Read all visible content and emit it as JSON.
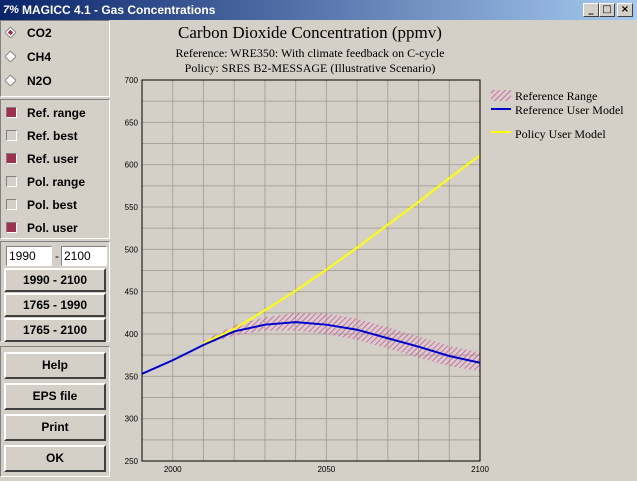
{
  "window": {
    "title": "MAGICC 4.1 - Gas Concentrations",
    "icon_glyph": "7%",
    "minimize_glyph": "_",
    "maximize_glyph": "□",
    "close_glyph": "×"
  },
  "gases": [
    {
      "label": "CO2",
      "selected": true
    },
    {
      "label": "CH4",
      "selected": false
    },
    {
      "label": "N2O",
      "selected": false
    }
  ],
  "options": [
    {
      "label": "Ref. range",
      "checked": true
    },
    {
      "label": "Ref. best",
      "checked": false
    },
    {
      "label": "Ref. user",
      "checked": true
    },
    {
      "label": "Pol. range",
      "checked": false
    },
    {
      "label": "Pol. best",
      "checked": false
    },
    {
      "label": "Pol. user",
      "checked": true
    }
  ],
  "year_range": {
    "start": "1990",
    "separator": "-",
    "end": "2100"
  },
  "range_buttons": [
    "1990 - 2100",
    "1765 - 1990",
    "1765 - 2100"
  ],
  "action_buttons": [
    "Help",
    "EPS file",
    "Print",
    "OK"
  ],
  "colors": {
    "reference_range": "#d84ca8",
    "reference_user": "#0000cc",
    "policy_user": "#ffff00",
    "checked": "#a03050"
  },
  "chart_data": {
    "type": "line",
    "title": "Carbon Dioxide Concentration (ppmv)",
    "subtitle_1": "Reference: WRE350: With climate feedback on C-cycle",
    "subtitle_2": "Policy: SRES B2-MESSAGE (Illustrative Scenario)",
    "xlim": [
      1990,
      2100
    ],
    "ylim": [
      250,
      700
    ],
    "x_ticks": [
      2000,
      2050,
      2100
    ],
    "y_ticks": [
      250,
      300,
      350,
      400,
      450,
      500,
      550,
      600,
      650,
      700
    ],
    "grid": true,
    "legend_position": "right",
    "legend": [
      "Reference Range",
      "Reference User Model",
      "Policy User Model"
    ],
    "reference_range": {
      "x": [
        2010,
        2020,
        2030,
        2040,
        2050,
        2060,
        2070,
        2080,
        2090,
        2100
      ],
      "low": [
        387,
        398,
        404,
        404,
        400,
        393,
        383,
        372,
        362,
        356
      ],
      "high": [
        392,
        410,
        420,
        425,
        424,
        418,
        408,
        397,
        386,
        378
      ]
    },
    "series": [
      {
        "name": "Reference User Model",
        "x": [
          1990,
          2000,
          2010,
          2020,
          2030,
          2040,
          2050,
          2060,
          2070,
          2080,
          2090,
          2100
        ],
        "values": [
          353,
          369,
          387,
          403,
          411,
          414,
          411,
          405,
          395,
          385,
          374,
          366
        ]
      },
      {
        "name": "Policy User Model",
        "x": [
          2010,
          2020,
          2030,
          2040,
          2050,
          2060,
          2070,
          2080,
          2090,
          2100
        ],
        "values": [
          389,
          406,
          428,
          451,
          476,
          502,
          529,
          556,
          584,
          611
        ]
      }
    ]
  }
}
